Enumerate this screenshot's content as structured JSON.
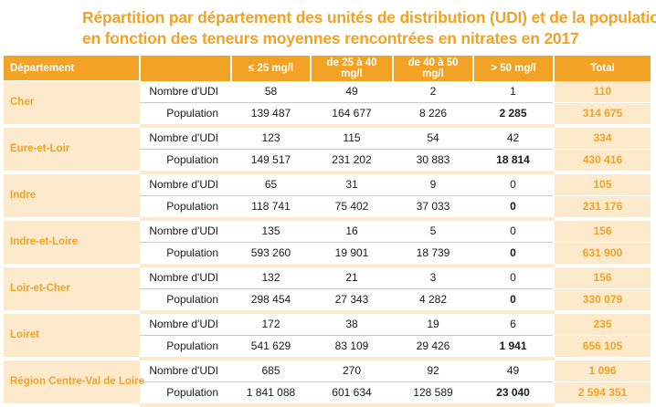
{
  "title": {
    "line1": "Répartition par département des unités de distribution (UDI) et de la population",
    "line2": "en fonction des teneurs moyennes rencontrées en nitrates en 2017"
  },
  "header": {
    "departement": "Département",
    "blank": "",
    "col1": "≤ 25 mg/l",
    "col2": "de 25 à 40 mg/l",
    "col3": "de 40 à 50 mg/l",
    "col4": "> 50 mg/l",
    "total": "Total"
  },
  "labels": {
    "udi": "Nombre d'UDI",
    "population": "Population"
  },
  "rows": [
    {
      "departement": "Cher",
      "udi": [
        "58",
        "49",
        "2",
        "1",
        "110"
      ],
      "population": [
        "139 487",
        "164 677",
        "8 226",
        "2 285",
        "314 675"
      ]
    },
    {
      "departement": "Eure-et-Loir",
      "udi": [
        "123",
        "115",
        "54",
        "42",
        "334"
      ],
      "population": [
        "149 517",
        "231 202",
        "30 883",
        "18 814",
        "430 416"
      ]
    },
    {
      "departement": "Indre",
      "udi": [
        "65",
        "31",
        "9",
        "0",
        "105"
      ],
      "population": [
        "118 741",
        "75 402",
        "37 033",
        "0",
        "231 176"
      ]
    },
    {
      "departement": "Indre-et-Loire",
      "udi": [
        "135",
        "16",
        "5",
        "0",
        "156"
      ],
      "population": [
        "593 260",
        "19 901",
        "18 739",
        "0",
        "631 900"
      ]
    },
    {
      "departement": "Loir-et-Cher",
      "udi": [
        "132",
        "21",
        "3",
        "0",
        "156"
      ],
      "population": [
        "298 454",
        "27 343",
        "4 282",
        "0",
        "330 079"
      ]
    },
    {
      "departement": "Loiret",
      "udi": [
        "172",
        "38",
        "19",
        "6",
        "235"
      ],
      "population": [
        "541 629",
        "83 109",
        "29 426",
        "1 941",
        "656 105"
      ]
    },
    {
      "departement": "Région Centre-Val de Loire",
      "udi": [
        "685",
        "270",
        "92",
        "49",
        "1 096"
      ],
      "population": [
        "1 841 088",
        "601 634",
        "128 589",
        "23 040",
        "2 594 351"
      ]
    }
  ],
  "colors": {
    "accent": "#f2a224",
    "light": "#fde9cc",
    "text": "#1a1a1a"
  }
}
